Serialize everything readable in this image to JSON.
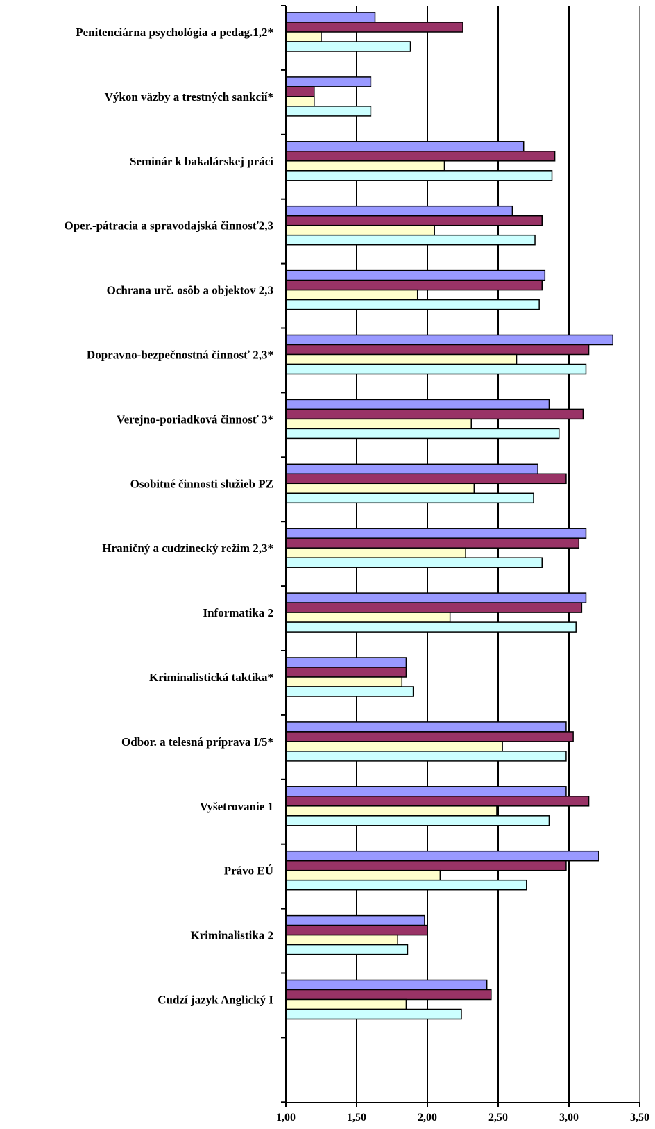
{
  "chart_data": {
    "type": "bar",
    "orientation": "horizontal",
    "title": "",
    "xlabel": "",
    "ylabel": "",
    "xlim": [
      1.0,
      3.5
    ],
    "x_ticks": [
      "1,00",
      "1,50",
      "2,00",
      "2,50",
      "3,00",
      "3,50"
    ],
    "x_tick_values": [
      1.0,
      1.5,
      2.0,
      2.5,
      3.0,
      3.5
    ],
    "grid": "vertical major gridlines",
    "legend": "none",
    "categories": [
      "Penitenciárna psychológia a pedag.1,2*",
      "Výkon väzby a trestných sankcií*",
      "Seminár k bakalárskej práci",
      "Oper.-pátracia a spravodajská činnosť2,3",
      "Ochrana urč. osôb a objektov 2,3",
      "Dopravno-bezpečnostná činnosť 2,3*",
      "Verejno-poriadková činnosť 3*",
      "Osobitné činnosti služieb PZ",
      "Hraničný a cudzinecký režim 2,3*",
      "Informatika 2",
      "Kriminalistická taktika*",
      "Odbor. a telesná príprava I/5*",
      "Vyšetrovanie 1",
      "Právo EÚ",
      "Kriminalistika 2",
      "Cudzí jazyk Anglický I"
    ],
    "series": [
      {
        "color": "#9999FF",
        "values": [
          1.63,
          1.6,
          2.68,
          2.6,
          2.83,
          3.31,
          2.86,
          2.78,
          3.12,
          3.12,
          1.85,
          2.98,
          2.98,
          3.21,
          1.98,
          2.42
        ]
      },
      {
        "color": "#993366",
        "values": [
          2.25,
          1.2,
          2.9,
          2.81,
          2.81,
          3.14,
          3.1,
          2.98,
          3.07,
          3.09,
          1.85,
          3.03,
          3.14,
          2.98,
          2.0,
          2.45
        ]
      },
      {
        "color": "#FFFFCC",
        "values": [
          1.25,
          1.2,
          2.12,
          2.05,
          1.93,
          2.63,
          2.31,
          2.33,
          2.27,
          2.16,
          1.82,
          2.53,
          2.49,
          2.09,
          1.79,
          1.85
        ]
      },
      {
        "color": "#CCFFFF",
        "values": [
          1.88,
          1.6,
          2.88,
          2.76,
          2.79,
          3.12,
          2.93,
          2.75,
          2.81,
          3.05,
          1.9,
          2.98,
          2.86,
          2.7,
          1.86,
          2.24
        ]
      }
    ]
  }
}
